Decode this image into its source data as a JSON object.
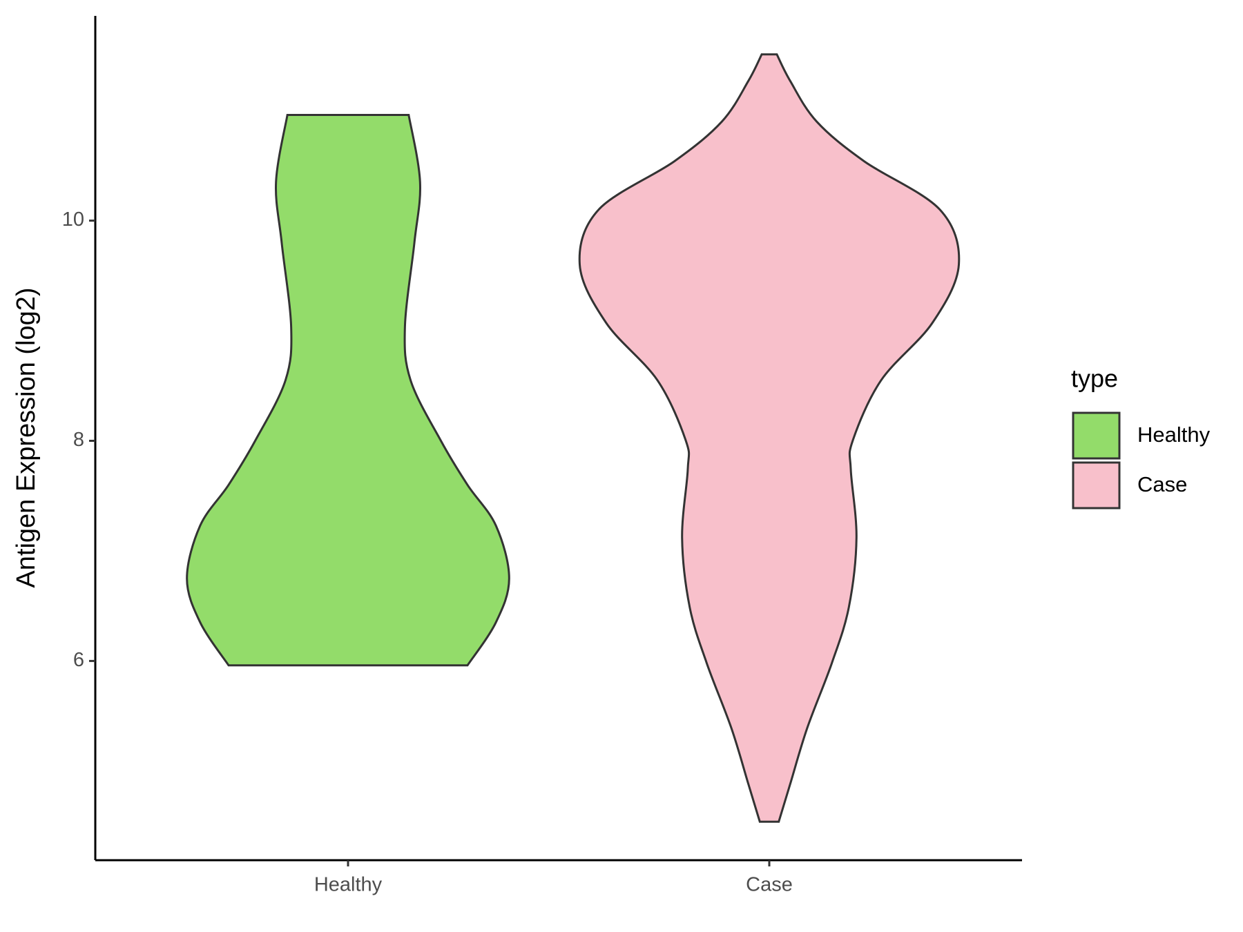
{
  "chart_data": {
    "type": "violin",
    "y_label": "Antigen Expression (log2)",
    "categories": [
      "Healthy",
      "Case"
    ],
    "legend_title": "type",
    "legend_position": "right",
    "ylim": [
      4.19,
      11.86
    ],
    "yticks": [
      6,
      8,
      10
    ],
    "series": [
      {
        "name": "Healthy",
        "color": "#93dc6a",
        "y": [
          10.96,
          10.35,
          9.8,
          9.03,
          8.55,
          8.0,
          7.6,
          7.23,
          6.75,
          6.35,
          5.96
        ],
        "density": [
          0.32,
          0.38,
          0.35,
          0.3,
          0.33,
          0.49,
          0.63,
          0.78,
          0.85,
          0.78,
          0.63
        ]
      },
      {
        "name": "Case",
        "color": "#f8c0cb",
        "y": [
          11.51,
          11.27,
          10.9,
          10.54,
          10.1,
          9.6,
          9.07,
          8.55,
          8.0,
          7.74,
          7.12,
          6.49,
          5.98,
          5.39,
          4.88,
          4.54
        ],
        "density": [
          0.04,
          0.11,
          0.25,
          0.5,
          0.9,
          1.0,
          0.86,
          0.59,
          0.44,
          0.43,
          0.46,
          0.42,
          0.33,
          0.2,
          0.11,
          0.05
        ]
      }
    ]
  }
}
